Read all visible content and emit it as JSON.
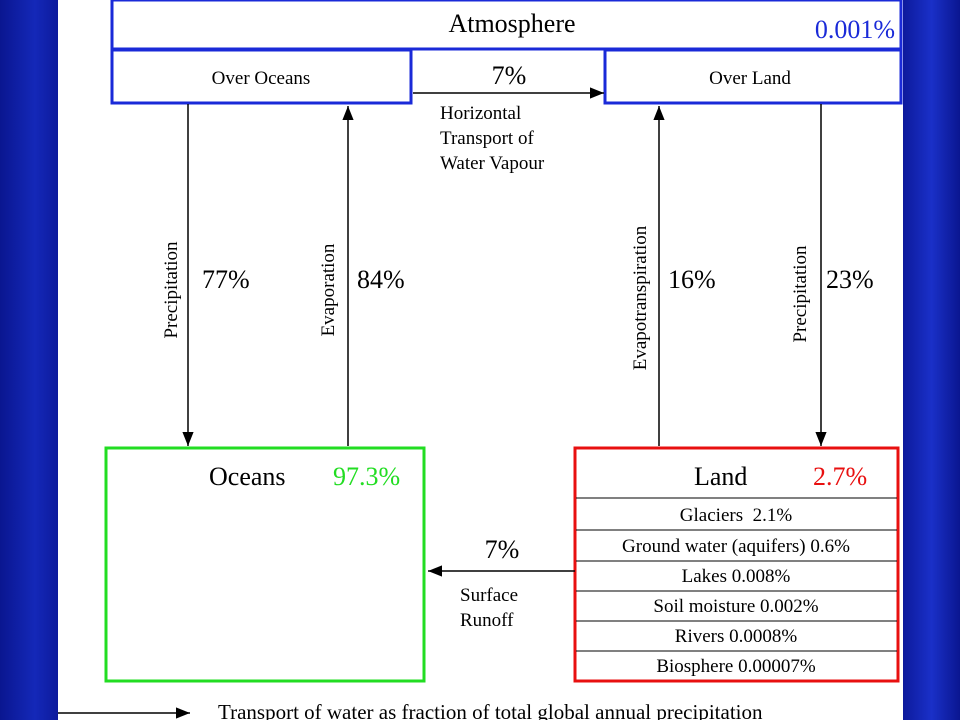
{
  "atmosphere": {
    "title": "Atmosphere",
    "percent": "0.001%",
    "over_oceans": "Over Oceans",
    "over_land": "Over Land"
  },
  "horizontal_transport": {
    "percent": "7%",
    "label_lines": [
      "Horizontal",
      "Transport of",
      "Water Vapour"
    ]
  },
  "flows": {
    "ocean_precip_label": "Precipitation",
    "ocean_precip_percent": "77%",
    "ocean_evap_label": "Evaporation",
    "ocean_evap_percent": "84%",
    "land_evapotrans_label": "Evapotranspiration",
    "land_evapotrans_percent": "16%",
    "land_precip_label": "Precipitation",
    "land_precip_percent": "23%"
  },
  "oceans": {
    "title": "Oceans",
    "percent": "97.3%"
  },
  "land": {
    "title": "Land",
    "percent": "2.7%",
    "rows": [
      "Glaciers  2.1%",
      "Ground water (aquifers) 0.6%",
      "Lakes 0.008%",
      "Soil moisture 0.002%",
      "Rivers 0.0008%",
      "Biosphere 0.00007%"
    ]
  },
  "runoff": {
    "percent": "7%",
    "label_lines": [
      "Surface",
      "Runoff"
    ]
  },
  "legend": {
    "text": "Transport of water as fraction of total global annual precipitation"
  },
  "colors": {
    "atmosphere_border": "#1a2ad8",
    "atmosphere_percent": "#1a2ad8",
    "oceans_border": "#22dd22",
    "oceans_percent": "#22dd22",
    "land_border": "#e81010",
    "land_percent": "#e81010",
    "slide_background": "#0d1a9c"
  }
}
